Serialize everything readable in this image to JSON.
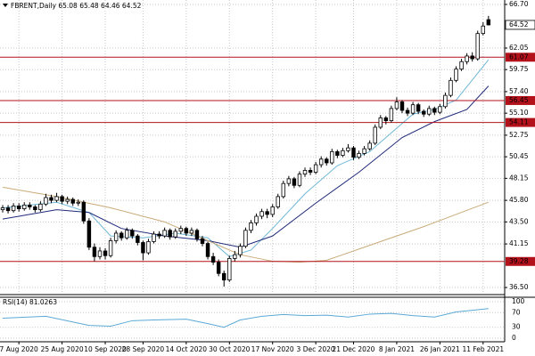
{
  "chart_data": {
    "type": "candlestick",
    "title": "FBRENT,Daily  65.08 65.48 64.46 64.52",
    "ohlc": [
      [
        44.8,
        45.3,
        44.5,
        45.0
      ],
      [
        45.0,
        45.3,
        44.4,
        44.7
      ],
      [
        44.7,
        45.5,
        44.5,
        45.2
      ],
      [
        45.2,
        45.5,
        44.6,
        44.9
      ],
      [
        44.9,
        45.6,
        44.7,
        45.3
      ],
      [
        45.3,
        45.6,
        44.8,
        45.1
      ],
      [
        45.1,
        45.3,
        44.5,
        44.8
      ],
      [
        44.8,
        45.7,
        44.6,
        45.4
      ],
      [
        45.4,
        46.5,
        45.2,
        46.1
      ],
      [
        46.1,
        46.4,
        45.5,
        45.8
      ],
      [
        45.8,
        46.6,
        45.6,
        46.2
      ],
      [
        46.2,
        46.4,
        45.4,
        45.7
      ],
      [
        45.7,
        46.2,
        45.4,
        45.9
      ],
      [
        45.9,
        46.1,
        45.2,
        45.5
      ],
      [
        45.5,
        45.9,
        45.2,
        45.6
      ],
      [
        45.6,
        45.8,
        43.3,
        43.6
      ],
      [
        43.6,
        43.9,
        40.5,
        40.8
      ],
      [
        40.8,
        41.2,
        39.3,
        39.8
      ],
      [
        39.8,
        40.8,
        39.5,
        40.4
      ],
      [
        40.4,
        40.7,
        39.5,
        39.9
      ],
      [
        39.9,
        41.8,
        39.7,
        41.5
      ],
      [
        41.5,
        42.6,
        41.2,
        42.3
      ],
      [
        42.3,
        42.5,
        41.5,
        41.8
      ],
      [
        41.8,
        42.9,
        41.6,
        42.6
      ],
      [
        42.6,
        42.8,
        41.7,
        42.0
      ],
      [
        42.0,
        42.2,
        41.0,
        41.3
      ],
      [
        41.3,
        41.5,
        39.4,
        40.2
      ],
      [
        40.2,
        41.7,
        40.0,
        41.4
      ],
      [
        41.4,
        42.5,
        41.2,
        42.2
      ],
      [
        42.2,
        42.5,
        41.7,
        42.0
      ],
      [
        42.0,
        42.9,
        41.8,
        42.6
      ],
      [
        42.6,
        42.8,
        41.6,
        41.9
      ],
      [
        41.9,
        42.8,
        41.7,
        42.5
      ],
      [
        42.5,
        43.1,
        42.2,
        42.8
      ],
      [
        42.8,
        43.0,
        42.0,
        42.3
      ],
      [
        42.3,
        42.9,
        42.0,
        42.6
      ],
      [
        42.6,
        42.8,
        41.4,
        41.7
      ],
      [
        41.7,
        42.0,
        40.9,
        41.2
      ],
      [
        41.2,
        41.4,
        39.5,
        39.8
      ],
      [
        39.8,
        40.2,
        38.9,
        39.2
      ],
      [
        39.2,
        39.5,
        37.7,
        38.0
      ],
      [
        38.0,
        38.3,
        36.6,
        37.3
      ],
      [
        37.3,
        39.9,
        37.1,
        39.6
      ],
      [
        39.6,
        40.4,
        39.3,
        40.0
      ],
      [
        40.0,
        41.2,
        39.7,
        40.9
      ],
      [
        40.9,
        42.9,
        40.7,
        42.6
      ],
      [
        42.6,
        43.7,
        42.3,
        43.4
      ],
      [
        43.4,
        44.4,
        43.1,
        44.1
      ],
      [
        44.1,
        44.9,
        43.8,
        44.6
      ],
      [
        44.6,
        44.9,
        43.9,
        44.3
      ],
      [
        44.3,
        45.4,
        44.0,
        45.1
      ],
      [
        45.1,
        46.5,
        44.9,
        46.2
      ],
      [
        46.2,
        47.9,
        46.0,
        47.6
      ],
      [
        47.6,
        48.4,
        47.3,
        48.1
      ],
      [
        48.1,
        48.3,
        47.1,
        47.4
      ],
      [
        47.4,
        48.9,
        47.2,
        48.6
      ],
      [
        48.6,
        49.3,
        48.3,
        49.0
      ],
      [
        49.0,
        49.3,
        48.5,
        48.8
      ],
      [
        48.8,
        49.9,
        48.6,
        49.6
      ],
      [
        49.6,
        50.5,
        49.3,
        50.2
      ],
      [
        50.2,
        50.4,
        49.5,
        49.8
      ],
      [
        49.8,
        51.3,
        49.6,
        51.0
      ],
      [
        51.0,
        51.2,
        50.3,
        50.6
      ],
      [
        50.6,
        51.4,
        50.4,
        51.1
      ],
      [
        51.1,
        51.8,
        50.9,
        51.4
      ],
      [
        51.4,
        51.6,
        50.1,
        50.4
      ],
      [
        50.4,
        51.1,
        50.2,
        50.8
      ],
      [
        50.8,
        51.6,
        50.6,
        51.3
      ],
      [
        51.3,
        52.2,
        51.1,
        51.9
      ],
      [
        51.9,
        53.9,
        51.7,
        53.6
      ],
      [
        53.6,
        54.9,
        53.4,
        54.6
      ],
      [
        54.6,
        54.8,
        53.9,
        54.3
      ],
      [
        54.3,
        55.9,
        54.1,
        55.6
      ],
      [
        55.6,
        56.8,
        55.4,
        56.3
      ],
      [
        56.3,
        56.5,
        55.1,
        55.4
      ],
      [
        55.4,
        55.7,
        54.8,
        55.1
      ],
      [
        55.1,
        56.3,
        54.9,
        56.0
      ],
      [
        56.0,
        56.2,
        55.0,
        55.3
      ],
      [
        55.3,
        55.5,
        54.7,
        55.0
      ],
      [
        55.0,
        55.9,
        54.8,
        55.6
      ],
      [
        55.6,
        55.8,
        54.9,
        55.2
      ],
      [
        55.2,
        56.1,
        55.0,
        55.8
      ],
      [
        55.8,
        57.3,
        55.6,
        57.0
      ],
      [
        57.0,
        58.9,
        56.8,
        58.6
      ],
      [
        58.6,
        60.1,
        58.4,
        59.8
      ],
      [
        59.8,
        60.9,
        59.6,
        60.6
      ],
      [
        60.6,
        61.5,
        60.3,
        61.2
      ],
      [
        61.2,
        61.6,
        60.6,
        60.9
      ],
      [
        60.9,
        63.9,
        60.7,
        63.6
      ],
      [
        63.6,
        64.8,
        63.4,
        64.4
      ],
      [
        65.08,
        65.48,
        64.46,
        64.52
      ]
    ],
    "series": [
      {
        "color": "#6fb8d6",
        "x": [
          0,
          10,
          16,
          20,
          26,
          32,
          38,
          42,
          46,
          50,
          56,
          62,
          68,
          72,
          76,
          80,
          84,
          90
        ],
        "values": [
          45.0,
          45.6,
          44.5,
          42.0,
          41.8,
          42.3,
          41.8,
          39.8,
          40.5,
          42.8,
          46.5,
          49.5,
          51.0,
          53.0,
          55.0,
          55.5,
          56.5,
          60.8
        ]
      },
      {
        "color": "#1f2a7a",
        "x": [
          0,
          10,
          16,
          22,
          30,
          38,
          44,
          50,
          58,
          66,
          74,
          80,
          86,
          90
        ],
        "values": [
          43.8,
          44.8,
          44.5,
          42.8,
          42.0,
          41.5,
          40.8,
          42.0,
          45.5,
          48.8,
          52.5,
          54.2,
          55.5,
          58.0
        ]
      },
      {
        "color": "#c9ab78",
        "x": [
          0,
          10,
          20,
          30,
          38,
          44,
          50,
          55,
          60,
          68,
          78,
          90
        ],
        "values": [
          47.2,
          46.2,
          45.0,
          43.5,
          41.5,
          40.0,
          39.3,
          39.2,
          39.4,
          41.0,
          43.0,
          45.6
        ]
      }
    ],
    "bull_color": "#ffffff",
    "bear_color": "#000000",
    "levels": [
      61.07,
      56.45,
      54.11,
      39.28
    ],
    "level_color": "#b3121b",
    "last_price": 64.52,
    "xlim": [
      -0.5,
      93
    ],
    "xticks": [
      {
        "value": 3,
        "label": "7 Aug 2020"
      },
      {
        "value": 11,
        "label": "25 Aug 2020"
      },
      {
        "value": 19,
        "label": "10 Sep 2020"
      },
      {
        "value": 26,
        "label": "28 Sep 2020"
      },
      {
        "value": 34,
        "label": "14 Oct 2020"
      },
      {
        "value": 42,
        "label": "30 Oct 2020"
      },
      {
        "value": 50,
        "label": "17 Nov 2020"
      },
      {
        "value": 58,
        "label": "3 Dec 2020"
      },
      {
        "value": 65,
        "label": "21 Dec 2020"
      },
      {
        "value": 73,
        "label": "8 Jan 2021"
      },
      {
        "value": 81,
        "label": "26 Jan 2021"
      },
      {
        "value": 89,
        "label": "11 Feb 2021"
      }
    ],
    "ylim": [
      35.84,
      67.175
    ],
    "yticks": [
      {
        "value": 66.7,
        "label": "66.70"
      },
      62.05,
      59.75,
      {
        "value": 57.4,
        "label": "57.40"
      },
      {
        "value": 55.1,
        "label": "55.10"
      },
      52.75,
      50.45,
      48.15,
      {
        "value": 45.8,
        "label": "45.80"
      },
      {
        "value": 43.5,
        "label": "43.50"
      },
      41.15,
      {
        "value": 36.5,
        "label": "36.50"
      }
    ],
    "grid": true,
    "rsi": {
      "label": "RSI(14) 81.0263",
      "color": "#5aa9d6",
      "x": [
        0,
        8,
        16,
        20,
        24,
        28,
        34,
        38,
        41,
        44,
        48,
        52,
        56,
        60,
        64,
        68,
        72,
        76,
        80,
        84,
        88,
        90
      ],
      "values": [
        55,
        60,
        35,
        33,
        48,
        50,
        52,
        40,
        30,
        50,
        60,
        65,
        62,
        63,
        58,
        66,
        68,
        62,
        58,
        72,
        78,
        81.03
      ],
      "ylim": [
        0,
        100
      ],
      "yticks": [
        100,
        70,
        30,
        0
      ]
    }
  }
}
